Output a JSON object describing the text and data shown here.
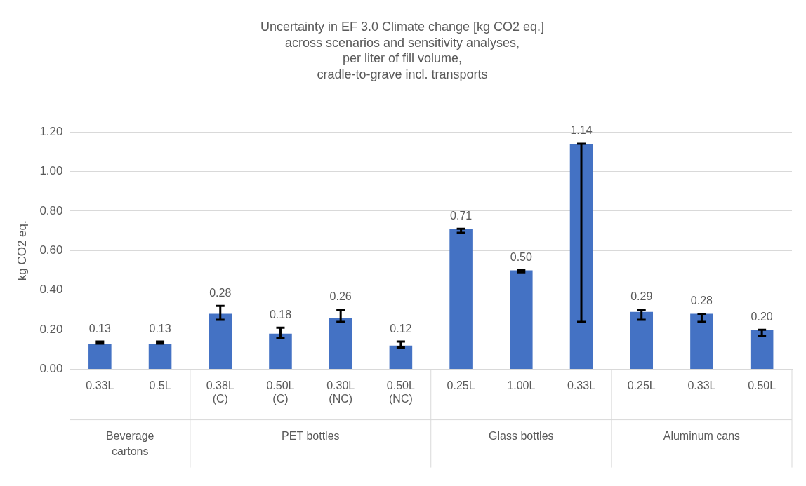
{
  "chart_data": {
    "type": "bar",
    "title": [
      "Uncertainty in EF 3.0 Climate change [kg CO2 eq.]",
      "across scenarios and sensitivity analyses,",
      "per liter of fill volume,",
      "cradle-to-grave incl. transports"
    ],
    "ylabel": "kg CO2 eq.",
    "categories": [
      "0.33L",
      "0.5L",
      "0.38L (C)",
      "0.50L (C)",
      "0.30L (NC)",
      "0.50L (NC)",
      "0.25L",
      "1.00L",
      "0.33L",
      "0.25L",
      "0.33L",
      "0.50L"
    ],
    "values": [
      0.13,
      0.13,
      0.28,
      0.18,
      0.26,
      0.12,
      0.71,
      0.5,
      1.14,
      0.29,
      0.28,
      0.2
    ],
    "value_labels": [
      "0.13",
      "0.13",
      "0.28",
      "0.18",
      "0.26",
      "0.12",
      "0.71",
      "0.50",
      "1.14",
      "0.29",
      "0.28",
      "0.20"
    ],
    "errors": [
      [
        0.13,
        0.14
      ],
      [
        0.13,
        0.14
      ],
      [
        0.25,
        0.32
      ],
      [
        0.16,
        0.21
      ],
      [
        0.24,
        0.3
      ],
      [
        0.11,
        0.14
      ],
      [
        0.69,
        0.71
      ],
      [
        0.49,
        0.5
      ],
      [
        0.24,
        1.14
      ],
      [
        0.25,
        0.3
      ],
      [
        0.24,
        0.28
      ],
      [
        0.17,
        0.2
      ]
    ],
    "color": "#4472c4",
    "ylim": [
      0,
      1.2
    ],
    "yticks": [
      {
        "value": 0,
        "label": "0.00"
      },
      {
        "value": 0.2,
        "label": "0.20"
      },
      {
        "value": 0.4,
        "label": "0.40"
      },
      {
        "value": 0.6,
        "label": "0.60"
      },
      {
        "value": 0.8,
        "label": "0.80"
      },
      {
        "value": 1.0,
        "label": "1.00"
      },
      {
        "value": 1.2,
        "label": "1.20"
      }
    ],
    "grid": "y",
    "legend": false,
    "annotations": [
      "Beverage cartons",
      "PET bottles",
      "Glass bottles",
      "Aluminum cans"
    ]
  }
}
